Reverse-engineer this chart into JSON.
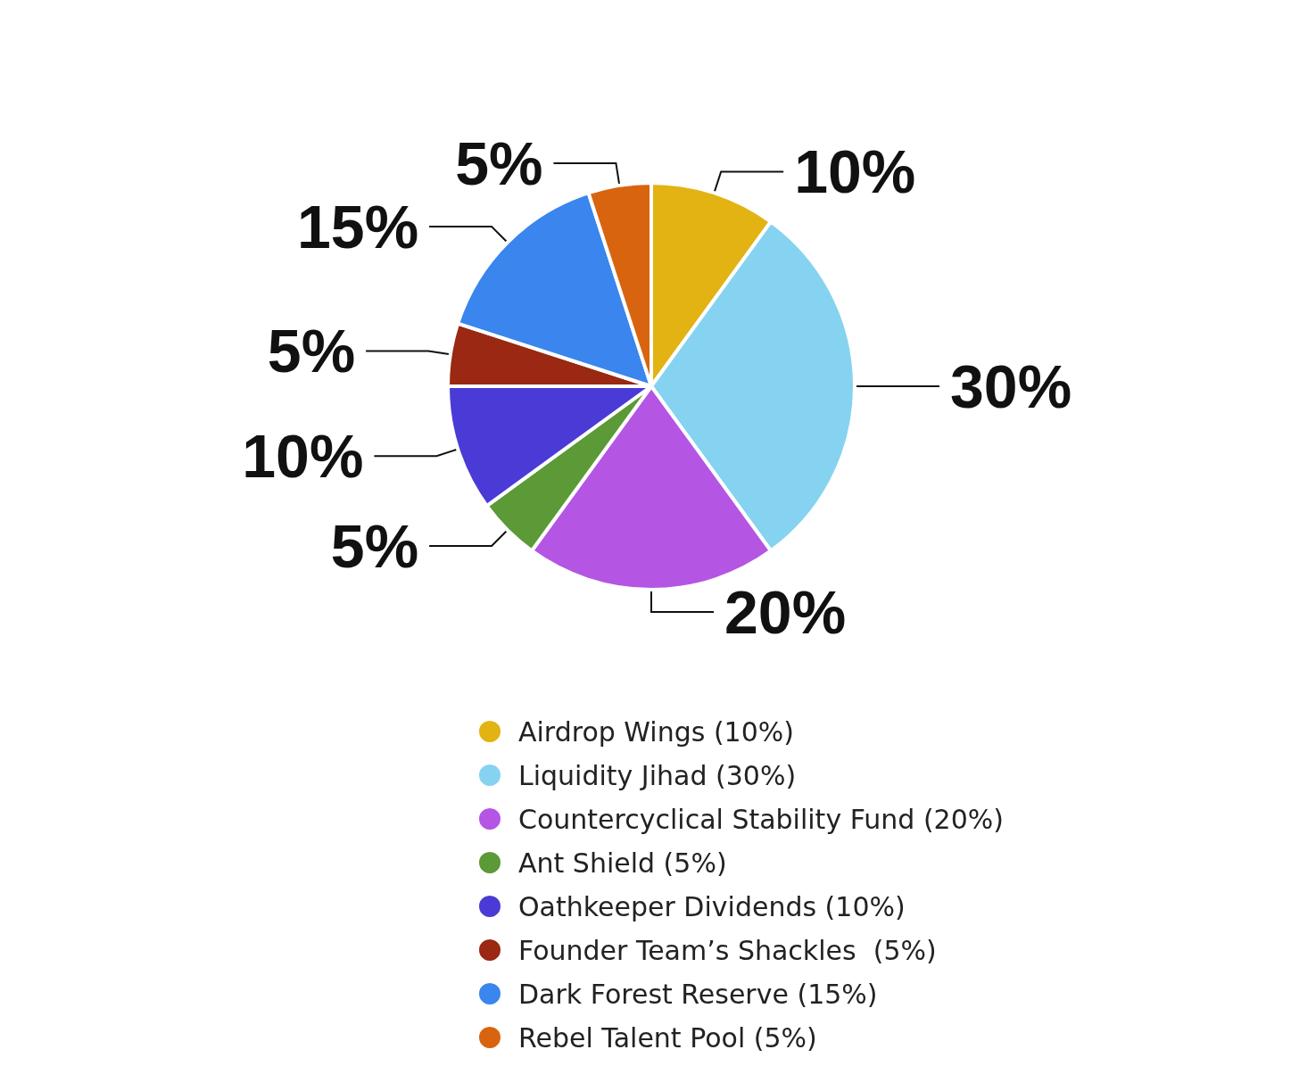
{
  "chart_data": {
    "type": "pie",
    "categories": [
      "Airdrop Wings (10%)",
      "Liquidity Jihad (30%)",
      "Countercyclical Stability Fund (20%)",
      "Ant Shield (5%)",
      "Oathkeeper Dividends (10%)",
      "Founder Team’s Shackles  (5%)",
      "Dark Forest Reserve (15%)",
      "Rebel Talent Pool (5%)"
    ],
    "values": [
      10,
      30,
      20,
      5,
      10,
      5,
      15,
      5
    ],
    "value_labels": [
      "10%",
      "30%",
      "20%",
      "5%",
      "10%",
      "5%",
      "15%",
      "5%"
    ],
    "colors": [
      "#e2b312",
      "#85d3f0",
      "#b455e3",
      "#5b9a37",
      "#4a3bd6",
      "#9a2812",
      "#3a85ee",
      "#d9640f"
    ],
    "legend": "bottom"
  }
}
